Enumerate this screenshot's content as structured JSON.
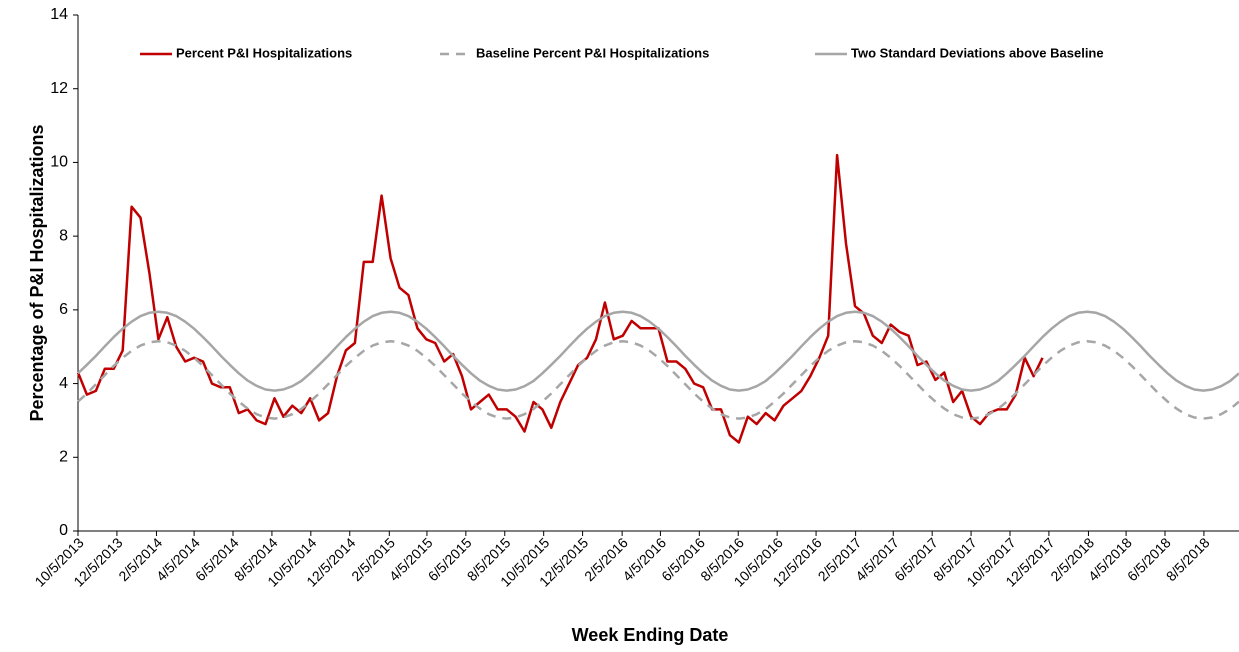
{
  "chart_data": {
    "type": "line",
    "y_label": "Percentage of P&I Hospitalizations",
    "x_label": "Week Ending Date",
    "legend": "top",
    "x": [
      "10/5/2013",
      "10/19/2013",
      "11/2/2013",
      "11/16/2013",
      "11/30/2013",
      "12/14/2013",
      "12/28/2013",
      "1/11/2014",
      "1/25/2014",
      "2/8/2014",
      "2/22/2014",
      "3/8/2014",
      "3/22/2014",
      "4/5/2014",
      "4/19/2014",
      "5/3/2014",
      "5/17/2014",
      "5/31/2014",
      "6/14/2014",
      "6/28/2014",
      "7/12/2014",
      "7/26/2014",
      "8/9/2014",
      "8/23/2014",
      "9/6/2014",
      "9/20/2014",
      "10/4/2014",
      "10/18/2014",
      "11/1/2014",
      "11/15/2014",
      "11/29/2014",
      "12/13/2014",
      "12/27/2014",
      "1/10/2015",
      "1/24/2015",
      "2/7/2015",
      "2/21/2015",
      "3/7/2015",
      "3/21/2015",
      "4/4/2015",
      "4/18/2015",
      "5/2/2015",
      "5/16/2015",
      "5/30/2015",
      "6/13/2015",
      "6/27/2015",
      "7/11/2015",
      "7/25/2015",
      "8/8/2015",
      "8/22/2015",
      "9/5/2015",
      "9/19/2015",
      "10/3/2015",
      "10/17/2015",
      "10/31/2015",
      "11/14/2015",
      "11/28/2015",
      "12/12/2015",
      "12/26/2015",
      "1/9/2016",
      "1/23/2016",
      "2/6/2016",
      "2/20/2016",
      "3/5/2016",
      "3/19/2016",
      "4/2/2016",
      "4/16/2016",
      "4/30/2016",
      "5/14/2016",
      "5/28/2016",
      "6/11/2016",
      "6/25/2016",
      "7/9/2016",
      "7/23/2016",
      "8/6/2016",
      "8/20/2016",
      "9/3/2016",
      "9/17/2016",
      "10/1/2016",
      "10/15/2016",
      "10/29/2016",
      "11/12/2016",
      "11/26/2016",
      "12/10/2016",
      "12/24/2016",
      "1/7/2017",
      "1/21/2017",
      "2/4/2017",
      "2/18/2017",
      "3/4/2017",
      "3/18/2017",
      "4/1/2017",
      "4/15/2017",
      "4/29/2017",
      "5/13/2017",
      "5/27/2017",
      "6/10/2017",
      "6/24/2017",
      "7/8/2017",
      "7/22/2017",
      "8/5/2017",
      "8/19/2017",
      "9/2/2017",
      "9/16/2017",
      "9/30/2017",
      "10/14/2017",
      "10/28/2017",
      "11/11/2017",
      "11/25/2017",
      "12/9/2017",
      "12/23/2017",
      "1/6/2018",
      "1/20/2018",
      "2/3/2018",
      "2/17/2018",
      "3/3/2018",
      "3/17/2018",
      "3/31/2018",
      "4/14/2018",
      "4/28/2018",
      "5/12/2018",
      "5/26/2018",
      "6/9/2018",
      "6/23/2018",
      "7/7/2018",
      "7/21/2018",
      "8/4/2018",
      "8/18/2018",
      "9/1/2018",
      "9/15/2018",
      "9/29/2018"
    ],
    "series": [
      {
        "name": "Percent P&I Hospitalizations",
        "color": "#c00000",
        "style": "solid",
        "values": [
          4.3,
          3.7,
          3.8,
          4.4,
          4.4,
          4.9,
          8.8,
          8.5,
          7.0,
          5.2,
          5.8,
          5.0,
          4.6,
          4.7,
          4.6,
          4.0,
          3.9,
          3.9,
          3.2,
          3.3,
          3.0,
          2.9,
          3.6,
          3.1,
          3.4,
          3.2,
          3.6,
          3.0,
          3.2,
          4.2,
          4.9,
          5.1,
          7.3,
          7.3,
          9.1,
          7.4,
          6.6,
          6.4,
          5.5,
          5.2,
          5.1,
          4.6,
          4.8,
          4.2,
          3.3,
          3.5,
          3.7,
          3.3,
          3.3,
          3.1,
          2.7,
          3.5,
          3.3,
          2.8,
          3.5,
          4.0,
          4.5,
          4.7,
          5.2,
          6.2,
          5.2,
          5.3,
          5.7,
          5.5,
          5.5,
          5.5,
          4.6,
          4.6,
          4.4,
          4.0,
          3.9,
          3.3,
          3.3,
          2.6,
          2.4,
          3.1,
          2.9,
          3.2,
          3.0,
          3.4,
          3.6,
          3.8,
          4.2,
          4.7,
          5.3,
          10.2,
          7.8,
          6.1,
          5.9,
          5.3,
          5.1,
          5.6,
          5.4,
          5.3,
          4.5,
          4.6,
          4.1,
          4.3,
          3.5,
          3.8,
          3.1,
          2.9,
          3.2,
          3.3,
          3.3,
          3.7,
          4.7,
          4.2,
          4.7,
          null,
          null,
          null,
          null,
          null,
          null,
          null,
          null,
          null,
          null,
          null,
          null,
          null,
          null,
          null,
          null,
          null,
          null,
          null,
          null,
          null,
          null
        ]
      },
      {
        "name": "Baseline Percent P&I Hospitalizations",
        "color": "#a6a6a6",
        "style": "dashed",
        "values": [
          3.51,
          3.73,
          3.98,
          4.23,
          4.48,
          4.7,
          4.89,
          5.03,
          5.12,
          5.15,
          5.12,
          5.03,
          4.89,
          4.7,
          4.48,
          4.23,
          3.98,
          3.73,
          3.51,
          3.32,
          3.17,
          3.08,
          3.05,
          3.08,
          3.17,
          3.31,
          3.51,
          3.73,
          3.98,
          4.23,
          4.48,
          4.7,
          4.89,
          5.03,
          5.12,
          5.15,
          5.12,
          5.03,
          4.89,
          4.7,
          4.48,
          4.23,
          3.98,
          3.73,
          3.51,
          3.32,
          3.17,
          3.08,
          3.05,
          3.08,
          3.17,
          3.31,
          3.51,
          3.73,
          3.98,
          4.23,
          4.48,
          4.7,
          4.89,
          5.03,
          5.12,
          5.15,
          5.12,
          5.03,
          4.89,
          4.7,
          4.48,
          4.23,
          3.98,
          3.73,
          3.51,
          3.32,
          3.17,
          3.08,
          3.05,
          3.08,
          3.17,
          3.31,
          3.51,
          3.73,
          3.98,
          4.23,
          4.48,
          4.7,
          4.89,
          5.03,
          5.12,
          5.15,
          5.12,
          5.03,
          4.89,
          4.7,
          4.48,
          4.23,
          3.98,
          3.73,
          3.51,
          3.32,
          3.17,
          3.08,
          3.05,
          3.08,
          3.17,
          3.31,
          3.51,
          3.73,
          3.98,
          4.23,
          4.48,
          4.7,
          4.89,
          5.03,
          5.12,
          5.15,
          5.12,
          5.03,
          4.89,
          4.7,
          4.48,
          4.23,
          3.98,
          3.73,
          3.51,
          3.32,
          3.17,
          3.08,
          3.05,
          3.08,
          3.17,
          3.31,
          3.51
        ]
      },
      {
        "name": "Two Standard Deviations above Baseline",
        "color": "#a6a6a6",
        "style": "solid",
        "values": [
          4.28,
          4.51,
          4.75,
          5.01,
          5.26,
          5.49,
          5.68,
          5.83,
          5.92,
          5.95,
          5.92,
          5.83,
          5.68,
          5.49,
          5.26,
          5.01,
          4.75,
          4.51,
          4.28,
          4.08,
          3.94,
          3.84,
          3.81,
          3.84,
          3.93,
          4.07,
          4.28,
          4.51,
          4.75,
          5.01,
          5.26,
          5.49,
          5.68,
          5.83,
          5.92,
          5.95,
          5.92,
          5.83,
          5.68,
          5.49,
          5.26,
          5.01,
          4.75,
          4.51,
          4.28,
          4.08,
          3.94,
          3.84,
          3.81,
          3.84,
          3.93,
          4.07,
          4.28,
          4.51,
          4.75,
          5.01,
          5.26,
          5.49,
          5.68,
          5.83,
          5.92,
          5.95,
          5.92,
          5.83,
          5.68,
          5.49,
          5.26,
          5.01,
          4.75,
          4.51,
          4.28,
          4.08,
          3.94,
          3.84,
          3.81,
          3.84,
          3.93,
          4.07,
          4.28,
          4.51,
          4.75,
          5.01,
          5.26,
          5.49,
          5.68,
          5.83,
          5.92,
          5.95,
          5.92,
          5.83,
          5.68,
          5.49,
          5.26,
          5.01,
          4.75,
          4.51,
          4.28,
          4.08,
          3.94,
          3.84,
          3.81,
          3.84,
          3.93,
          4.07,
          4.28,
          4.51,
          4.75,
          5.01,
          5.26,
          5.49,
          5.68,
          5.83,
          5.92,
          5.95,
          5.92,
          5.83,
          5.68,
          5.49,
          5.26,
          5.01,
          4.75,
          4.51,
          4.28,
          4.08,
          3.94,
          3.84,
          3.81,
          3.84,
          3.93,
          4.07,
          4.28
        ]
      }
    ],
    "xlim": [
      "10/5/2013",
      "9/29/2018"
    ],
    "xticks": [
      "10/5/2013",
      "12/5/2013",
      "2/5/2014",
      "4/5/2014",
      "6/5/2014",
      "8/5/2014",
      "10/5/2014",
      "12/5/2014",
      "2/5/2015",
      "4/5/2015",
      "6/5/2015",
      "8/5/2015",
      "10/5/2015",
      "12/5/2015",
      "2/5/2016",
      "4/5/2016",
      "6/5/2016",
      "8/5/2016",
      "10/5/2016",
      "12/5/2016",
      "2/5/2017",
      "4/5/2017",
      "6/5/2017",
      "8/5/2017",
      "10/5/2017",
      "12/5/2017",
      "2/5/2018",
      "4/5/2018",
      "6/5/2018",
      "8/5/2018"
    ],
    "ylim": [
      0,
      14
    ],
    "yticks": [
      0,
      2,
      4,
      6,
      8,
      10,
      12,
      14
    ],
    "grid": false
  }
}
